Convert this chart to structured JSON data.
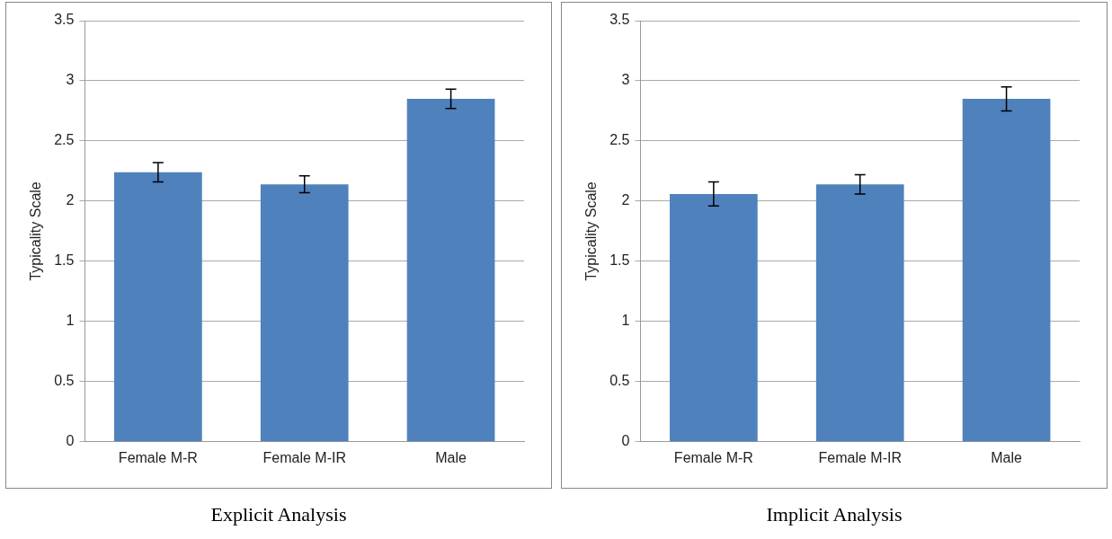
{
  "chart_data": [
    {
      "type": "bar",
      "title": "Explicit Analysis",
      "ylabel": "Typicality Scale",
      "categories": [
        "Female M-R",
        "Female M-IR",
        "Male"
      ],
      "values": [
        2.24,
        2.14,
        2.85
      ],
      "errors": [
        0.08,
        0.07,
        0.08
      ],
      "color": "#4f81bd",
      "ylim": [
        0,
        3.5
      ],
      "yticks": [
        0,
        0.5,
        1,
        1.5,
        2,
        2.5,
        3,
        3.5
      ],
      "grid": "y",
      "legend": false
    },
    {
      "type": "bar",
      "title": "Implicit Analysis",
      "ylabel": "Typicality Scale",
      "categories": [
        "Female M-R",
        "Female M-IR",
        "Male"
      ],
      "values": [
        2.06,
        2.14,
        2.85
      ],
      "errors": [
        0.1,
        0.08,
        0.1
      ],
      "color": "#4f81bd",
      "ylim": [
        0,
        3.5
      ],
      "yticks": [
        0,
        0.5,
        1,
        1.5,
        2,
        2.5,
        3,
        3.5
      ],
      "grid": "y",
      "legend": false
    }
  ]
}
